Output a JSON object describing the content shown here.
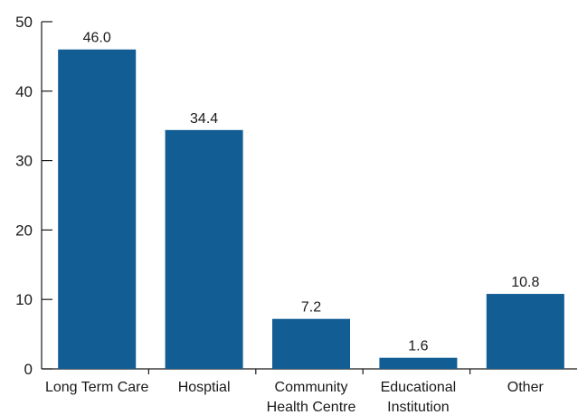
{
  "chart_data": {
    "type": "bar",
    "categories": [
      [
        "Long Term Care"
      ],
      [
        "Hosptial"
      ],
      [
        "Community",
        "Health Centre"
      ],
      [
        "Educational",
        "Institution"
      ],
      [
        "Other"
      ]
    ],
    "values": [
      46.0,
      34.4,
      7.2,
      1.6,
      10.8
    ],
    "value_labels": [
      "46.0",
      "34.4",
      "7.2",
      "1.6",
      "10.8"
    ],
    "ylim": [
      0,
      50
    ],
    "yticks": [
      0,
      10,
      20,
      30,
      40,
      50
    ],
    "bar_color": "#115d94",
    "axis_color": "#1a1a1a",
    "grid": false,
    "title": "",
    "xlabel": "",
    "ylabel": ""
  }
}
